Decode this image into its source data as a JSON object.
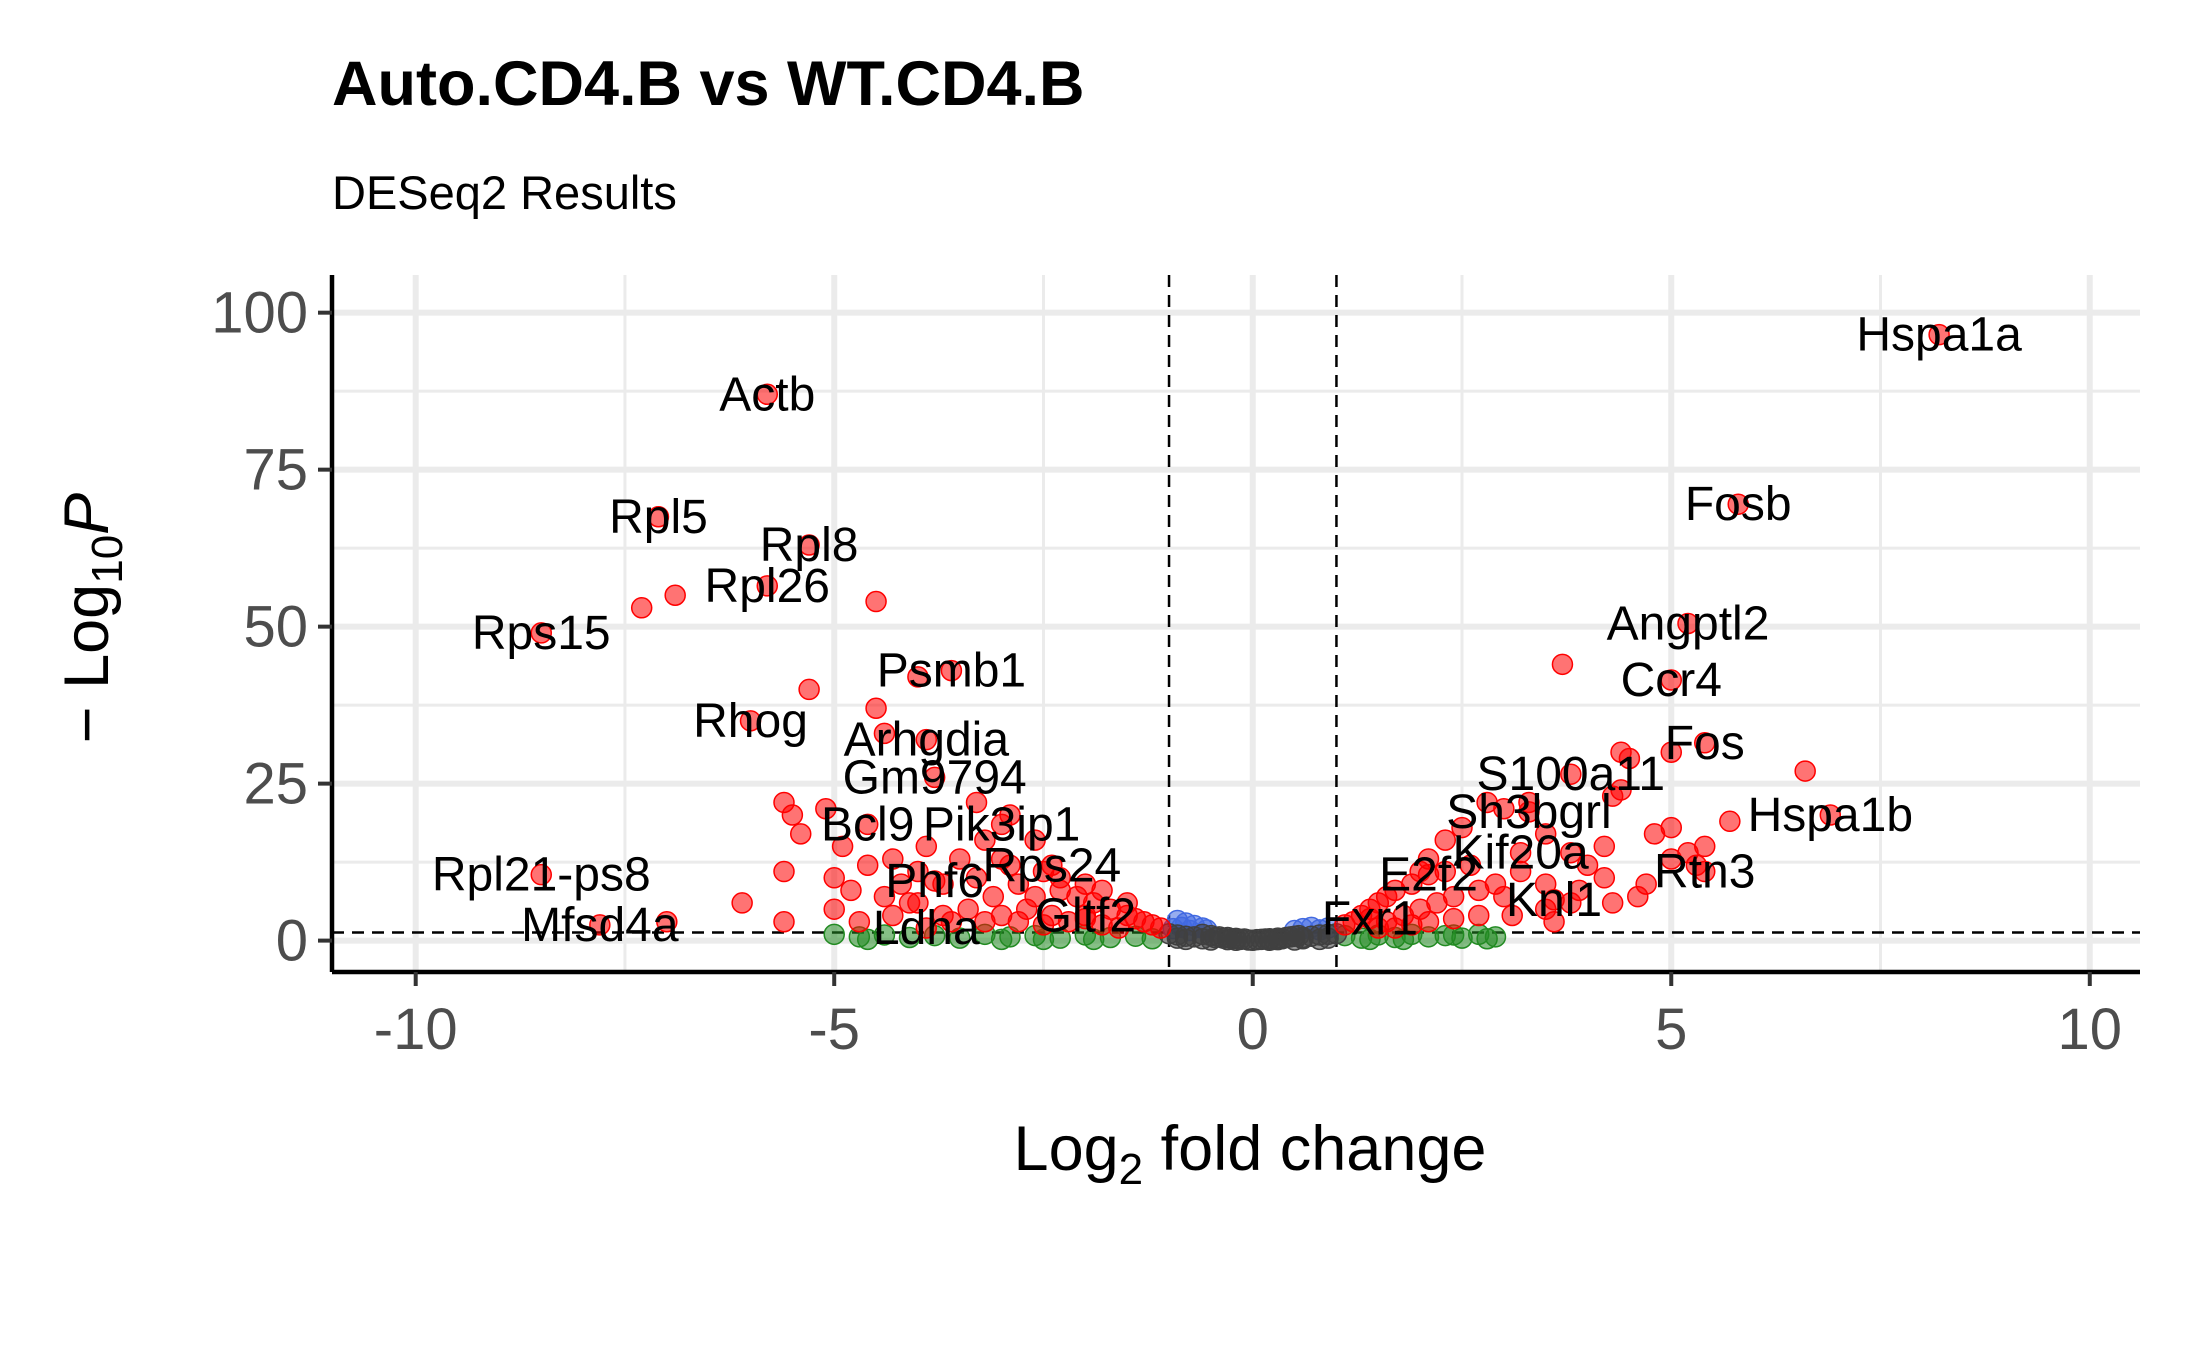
{
  "chart_data": {
    "type": "scatter",
    "title": "Auto.CD4.B vs WT.CD4.B",
    "subtitle": "DESeq2 Results",
    "xlabel": {
      "base": "Log",
      "sub": "2",
      "rest": " fold change"
    },
    "ylabel": {
      "prefix": "− Log",
      "sub": "10",
      "italic": "P"
    },
    "xlim": [
      -11.0,
      10.6
    ],
    "ylim": [
      -5,
      106
    ],
    "xticks": [
      -10,
      -5,
      0,
      5,
      10
    ],
    "xtick_labels": [
      "-10",
      "-5",
      "0",
      "5",
      "10"
    ],
    "yticks": [
      0,
      25,
      50,
      75,
      100
    ],
    "ytick_labels": [
      "0",
      "25",
      "50",
      "75",
      "100"
    ],
    "grid": true,
    "fc_cutoffs": [
      -1,
      1
    ],
    "p_cutoff_y": 1.3,
    "legend": "none",
    "colors": {
      "ns": "#404040",
      "log2fc": "#228B22",
      "p": "#4169E1",
      "p_and_log2fc": "#FF0000",
      "grid": "#ebebeb",
      "axis": "#000000",
      "tick_label": "#4d4d4d"
    },
    "series": [
      {
        "key": "p_and_log2fc",
        "labeled": [
          {
            "x": 8.2,
            "y": 96.5,
            "label": "Hspa1a"
          },
          {
            "x": -5.8,
            "y": 87.0,
            "label": "Actb"
          },
          {
            "x": 5.8,
            "y": 69.5,
            "label": "Fosb"
          },
          {
            "x": -7.1,
            "y": 67.5,
            "label": "Rpl5"
          },
          {
            "x": -5.3,
            "y": 63.0,
            "label": "Rpl8"
          },
          {
            "x": -5.8,
            "y": 56.5,
            "label": "Rpl26"
          },
          {
            "x": -8.5,
            "y": 49.0,
            "label": "Rps15"
          },
          {
            "x": 5.2,
            "y": 50.5,
            "label": "Angptl2"
          },
          {
            "x": -3.6,
            "y": 43.0,
            "label": "Psmb1"
          },
          {
            "x": 5.0,
            "y": 41.5,
            "label": "Ccr4"
          },
          {
            "x": -6.0,
            "y": 35.0,
            "label": "Rhog"
          },
          {
            "x": -3.9,
            "y": 32.0,
            "label": "Arhgdia"
          },
          {
            "x": 5.4,
            "y": 31.5,
            "label": "Fos"
          },
          {
            "x": 3.8,
            "y": 26.5,
            "label": "S100a11"
          },
          {
            "x": -3.8,
            "y": 26.0,
            "label": "Gm9794"
          },
          {
            "x": 6.9,
            "y": 20.0,
            "label": "Hspa1b"
          },
          {
            "x": 3.3,
            "y": 20.5,
            "label": "Sh3bgrl"
          },
          {
            "x": -4.6,
            "y": 18.5,
            "label": "Bcl9"
          },
          {
            "x": -3.0,
            "y": 18.5,
            "label": "Pik3ip1"
          },
          {
            "x": 3.2,
            "y": 14.0,
            "label": "Kif20a"
          },
          {
            "x": -2.4,
            "y": 12.0,
            "label": "Rps24"
          },
          {
            "x": 2.1,
            "y": 10.5,
            "label": "E2f2"
          },
          {
            "x": 5.4,
            "y": 11.0,
            "label": "Rtn3"
          },
          {
            "x": -3.8,
            "y": 9.5,
            "label": "Phf6"
          },
          {
            "x": -8.5,
            "y": 10.5,
            "label": "Rpl21-ps8"
          },
          {
            "x": 3.6,
            "y": 6.5,
            "label": "Knl1"
          },
          {
            "x": -2.0,
            "y": 4.0,
            "label": "Gltf2"
          },
          {
            "x": 1.4,
            "y": 3.5,
            "label": "Fxr1"
          },
          {
            "x": -7.8,
            "y": 2.5,
            "label": "Mfsd4a"
          },
          {
            "x": -3.9,
            "y": 2.0,
            "label": "Ldha"
          }
        ],
        "points": [
          [
            -7.3,
            53
          ],
          [
            -6.9,
            55
          ],
          [
            -5.3,
            40
          ],
          [
            -4.5,
            54
          ],
          [
            -4.5,
            37
          ],
          [
            -4.4,
            33
          ],
          [
            -4.0,
            42
          ],
          [
            -3.3,
            22
          ],
          [
            -2.9,
            20
          ],
          [
            -2.6,
            16
          ],
          [
            -5.6,
            22
          ],
          [
            -5.5,
            20
          ],
          [
            -5.4,
            17
          ],
          [
            -5.1,
            21
          ],
          [
            -4.9,
            15
          ],
          [
            -5.6,
            11
          ],
          [
            -5.0,
            10
          ],
          [
            -4.8,
            8
          ],
          [
            -4.3,
            13
          ],
          [
            -4.0,
            11
          ],
          [
            -3.7,
            9
          ],
          [
            -3.5,
            13
          ],
          [
            -3.2,
            16
          ],
          [
            -3.0,
            13
          ],
          [
            -2.8,
            9
          ],
          [
            -2.5,
            11
          ],
          [
            -2.3,
            8
          ],
          [
            -2.1,
            7
          ],
          [
            -1.9,
            6
          ],
          [
            -1.7,
            5
          ],
          [
            -1.5,
            4
          ],
          [
            -1.3,
            3
          ],
          [
            -1.2,
            2.5
          ],
          [
            -6.1,
            6
          ],
          [
            -5.0,
            5
          ],
          [
            -4.7,
            3
          ],
          [
            -4.3,
            4
          ],
          [
            -5.6,
            3
          ],
          [
            -7.0,
            3
          ],
          [
            -4.1,
            6
          ],
          [
            -3.4,
            5
          ],
          [
            -3.1,
            7
          ],
          [
            -2.7,
            5
          ],
          [
            -2.4,
            4
          ],
          [
            -2.2,
            3
          ],
          [
            -2.0,
            3.5
          ],
          [
            -1.8,
            2.5
          ],
          [
            -1.6,
            2
          ],
          [
            -3.6,
            3
          ],
          [
            -3.2,
            3
          ],
          [
            -4.6,
            12
          ],
          [
            -4.2,
            9
          ],
          [
            -3.9,
            15
          ],
          [
            -3.3,
            10
          ],
          [
            -2.9,
            12
          ],
          [
            -2.6,
            7
          ],
          [
            -2.3,
            10
          ],
          [
            -2.0,
            9
          ],
          [
            -1.8,
            8
          ],
          [
            -1.5,
            6
          ],
          [
            -4.4,
            7
          ],
          [
            -4.0,
            6
          ],
          [
            -3.7,
            4
          ],
          [
            -3.0,
            4
          ],
          [
            -2.8,
            3
          ],
          [
            -2.5,
            2.5
          ],
          [
            -1.4,
            3.5
          ],
          [
            -1.1,
            2
          ],
          [
            3.7,
            44
          ],
          [
            5.0,
            30
          ],
          [
            6.6,
            27
          ],
          [
            4.4,
            30
          ],
          [
            4.5,
            29
          ],
          [
            4.4,
            24
          ],
          [
            4.3,
            23
          ],
          [
            5.7,
            19
          ],
          [
            5.2,
            14
          ],
          [
            5.0,
            13
          ],
          [
            4.8,
            17
          ],
          [
            5.0,
            18
          ],
          [
            5.4,
            15
          ],
          [
            5.3,
            12
          ],
          [
            4.2,
            15
          ],
          [
            4.0,
            12
          ],
          [
            3.8,
            14
          ],
          [
            3.5,
            17
          ],
          [
            3.3,
            22
          ],
          [
            3.0,
            21
          ],
          [
            2.8,
            22
          ],
          [
            2.5,
            18
          ],
          [
            2.3,
            16
          ],
          [
            2.1,
            13
          ],
          [
            2.0,
            11
          ],
          [
            1.9,
            9
          ],
          [
            1.7,
            8
          ],
          [
            1.6,
            7
          ],
          [
            1.5,
            6
          ],
          [
            1.4,
            5
          ],
          [
            1.3,
            4
          ],
          [
            1.2,
            3
          ],
          [
            1.1,
            2.5
          ],
          [
            4.6,
            7
          ],
          [
            4.7,
            9
          ],
          [
            4.2,
            10
          ],
          [
            3.9,
            8
          ],
          [
            3.5,
            9
          ],
          [
            3.2,
            11
          ],
          [
            2.9,
            9
          ],
          [
            2.7,
            8
          ],
          [
            2.4,
            7
          ],
          [
            2.2,
            6
          ],
          [
            2.0,
            5
          ],
          [
            1.8,
            4
          ],
          [
            1.6,
            3
          ],
          [
            3.5,
            5
          ],
          [
            3.6,
            3
          ],
          [
            3.1,
            4
          ],
          [
            2.7,
            4
          ],
          [
            2.4,
            3.5
          ],
          [
            2.1,
            3
          ],
          [
            1.9,
            2.5
          ],
          [
            1.7,
            2
          ],
          [
            3.8,
            6
          ],
          [
            4.3,
            6
          ],
          [
            3.0,
            7
          ],
          [
            2.6,
            12
          ],
          [
            2.3,
            11
          ],
          [
            1.5,
            2
          ]
        ]
      },
      {
        "key": "log2fc",
        "points": [
          [
            -5.0,
            1.0
          ],
          [
            -4.7,
            0.6
          ],
          [
            -4.4,
            0.9
          ],
          [
            -4.1,
            0.5
          ],
          [
            -3.8,
            0.8
          ],
          [
            -3.5,
            0.4
          ],
          [
            -3.2,
            1.0
          ],
          [
            -2.9,
            0.6
          ],
          [
            -2.6,
            0.8
          ],
          [
            -2.3,
            0.4
          ],
          [
            -2.0,
            0.9
          ],
          [
            -1.7,
            0.5
          ],
          [
            -1.4,
            0.7
          ],
          [
            -1.2,
            0.3
          ],
          [
            -3.0,
            0.2
          ],
          [
            -2.5,
            0.2
          ],
          [
            -1.9,
            0.2
          ],
          [
            -4.6,
            0.2
          ],
          [
            1.1,
            0.8
          ],
          [
            1.3,
            0.4
          ],
          [
            1.5,
            0.9
          ],
          [
            1.7,
            0.5
          ],
          [
            1.9,
            1.0
          ],
          [
            2.1,
            0.6
          ],
          [
            2.3,
            0.8
          ],
          [
            2.5,
            0.4
          ],
          [
            2.7,
            1.0
          ],
          [
            2.9,
            0.6
          ],
          [
            2.4,
            0.9
          ],
          [
            2.8,
            0.3
          ],
          [
            1.8,
            0.2
          ],
          [
            1.4,
            0.2
          ]
        ]
      },
      {
        "key": "p",
        "points": [
          [
            -0.9,
            3.2
          ],
          [
            -0.8,
            2.8
          ],
          [
            -0.7,
            2.4
          ],
          [
            -0.6,
            2.0
          ],
          [
            -0.55,
            1.7
          ],
          [
            -0.85,
            2.1
          ],
          [
            -0.95,
            1.9
          ],
          [
            -0.75,
            1.6
          ],
          [
            0.5,
            1.6
          ],
          [
            0.6,
            1.9
          ],
          [
            0.7,
            2.1
          ],
          [
            0.8,
            1.7
          ],
          [
            0.9,
            2.0
          ]
        ]
      },
      {
        "key": "ns",
        "points": [
          [
            -1.0,
            1.1
          ],
          [
            -0.9,
            0.9
          ],
          [
            -0.8,
            0.7
          ],
          [
            -0.7,
            0.6
          ],
          [
            -0.6,
            1.0
          ],
          [
            -0.5,
            0.8
          ],
          [
            -0.45,
            0.5
          ],
          [
            -0.4,
            0.6
          ],
          [
            -0.35,
            0.4
          ],
          [
            -0.3,
            0.5
          ],
          [
            -0.25,
            0.3
          ],
          [
            -0.2,
            0.35
          ],
          [
            -0.15,
            0.2
          ],
          [
            -0.1,
            0.25
          ],
          [
            -0.05,
            0.1
          ],
          [
            0.0,
            0.05
          ],
          [
            0.05,
            0.15
          ],
          [
            0.1,
            0.2
          ],
          [
            0.15,
            0.25
          ],
          [
            0.2,
            0.3
          ],
          [
            0.25,
            0.2
          ],
          [
            0.3,
            0.4
          ],
          [
            0.35,
            0.3
          ],
          [
            0.4,
            0.5
          ],
          [
            0.45,
            0.6
          ],
          [
            0.5,
            0.7
          ],
          [
            0.55,
            0.8
          ],
          [
            0.6,
            0.5
          ],
          [
            0.7,
            0.7
          ],
          [
            0.8,
            0.9
          ],
          [
            0.9,
            1.0
          ],
          [
            1.0,
            1.1
          ],
          [
            -0.8,
            0.2
          ],
          [
            -0.5,
            0.1
          ],
          [
            -0.2,
            0.05
          ],
          [
            0.2,
            0.05
          ],
          [
            0.5,
            0.1
          ],
          [
            0.8,
            0.2
          ],
          [
            -0.9,
            0.4
          ],
          [
            0.9,
            0.4
          ],
          [
            -0.6,
            0.3
          ],
          [
            0.6,
            0.3
          ],
          [
            -0.3,
            0.15
          ],
          [
            0.3,
            0.15
          ]
        ]
      }
    ]
  }
}
